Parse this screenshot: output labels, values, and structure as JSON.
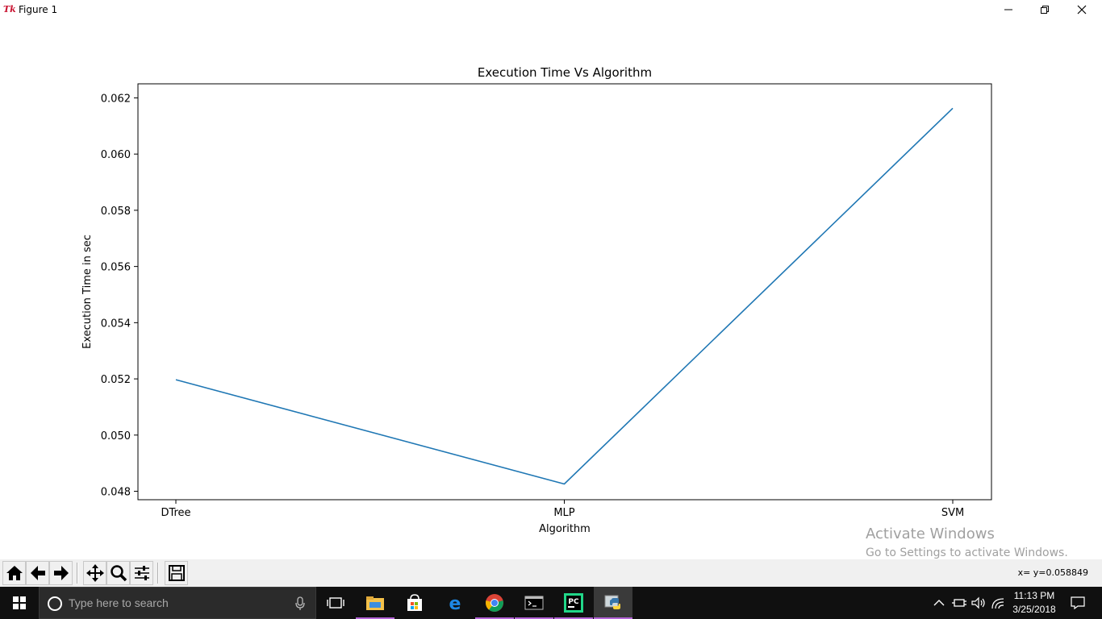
{
  "window": {
    "title": "Figure 1",
    "app_icon_text": "Tk",
    "minimize_icon": "minimize-icon",
    "restore_icon": "restore-icon",
    "close_icon": "close-icon"
  },
  "chart_data": {
    "type": "line",
    "title": "Execution Time Vs Algorithm",
    "xlabel": "Algorithm",
    "ylabel": "Execution Time in sec",
    "categories": [
      "DTree",
      "MLP",
      "SVM"
    ],
    "series": [
      {
        "values": [
          0.05197,
          0.04826,
          0.06163
        ],
        "color": "#1f77b4"
      }
    ],
    "ylim": [
      0.0477,
      0.0625
    ],
    "yticks": [
      0.048,
      0.05,
      0.052,
      0.054,
      0.056,
      0.058,
      0.06,
      0.062
    ],
    "ytick_labels": [
      "0.048",
      "0.050",
      "0.052",
      "0.054",
      "0.056",
      "0.058",
      "0.060",
      "0.062"
    ],
    "grid": false,
    "legend": "none"
  },
  "watermark": {
    "line1": "Activate Windows",
    "line2": "Go to Settings to activate Windows."
  },
  "toolbar": {
    "buttons": [
      "home-icon",
      "back-arrow-icon",
      "forward-arrow-icon",
      "pan-icon",
      "zoom-icon",
      "configure-subplots-icon",
      "save-icon"
    ],
    "coords": "x= y=0.058849"
  },
  "taskbar": {
    "search_placeholder": "Type here to search",
    "apps": [
      "task-view-icon",
      "file-explorer-icon",
      "store-icon",
      "edge-icon",
      "chrome-icon",
      "cmd-icon",
      "pycharm-icon",
      "python-icon"
    ],
    "clock_time": "11:13 PM",
    "clock_date": "3/25/2018",
    "accent": "#b565d8"
  }
}
